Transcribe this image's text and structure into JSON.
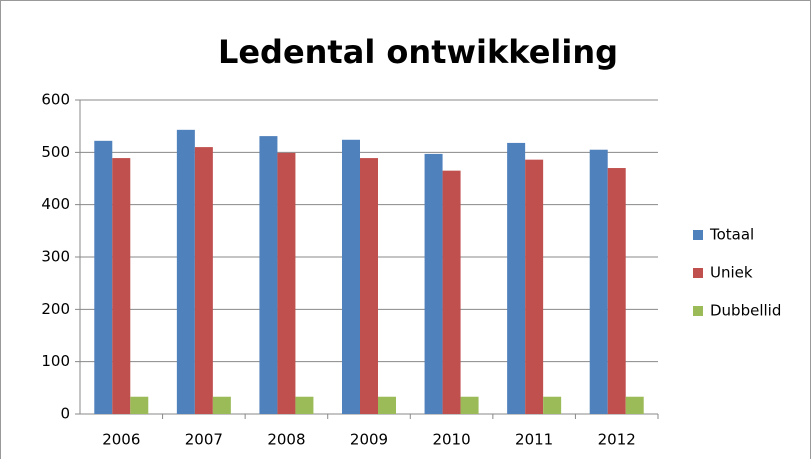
{
  "chart_data": {
    "type": "bar",
    "title": "Ledental ontwikkeling",
    "categories": [
      "2006",
      "2007",
      "2008",
      "2009",
      "2010",
      "2011",
      "2012"
    ],
    "series": [
      {
        "name": "Totaal",
        "color": "#4f81bd",
        "values": [
          522,
          543,
          531,
          524,
          497,
          518,
          505
        ]
      },
      {
        "name": "Uniek",
        "color": "#c0504d",
        "values": [
          489,
          510,
          499,
          489,
          465,
          486,
          470
        ]
      },
      {
        "name": "Dubbellid",
        "color": "#9bbb59",
        "values": [
          33,
          33,
          33,
          33,
          33,
          33,
          33
        ]
      }
    ],
    "ylim": [
      0,
      600
    ],
    "yticks": [
      0,
      100,
      200,
      300,
      400,
      500,
      600
    ],
    "grid": true,
    "legend": "right"
  }
}
